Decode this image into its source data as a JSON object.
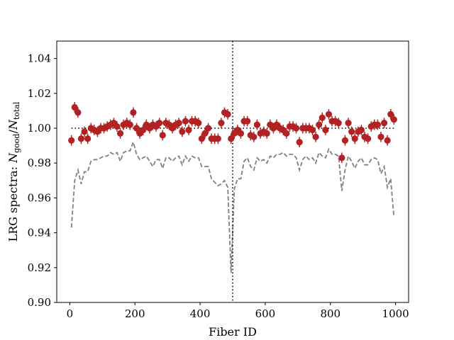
{
  "chart_data": {
    "type": "scatter",
    "xlabel": "Fiber ID",
    "ylabel": "LRG spectra: N_good/N_total",
    "ylabel_parts": {
      "prefix": "LRG spectra:  ",
      "num": "N",
      "num_sub": "good",
      "slash": "/",
      "den": "N",
      "den_sub": "total"
    },
    "xlim": [
      -40,
      1040
    ],
    "ylim": [
      0.9,
      1.05
    ],
    "x_ticks": [
      0,
      200,
      400,
      600,
      800,
      1000
    ],
    "x_tick_labels": [
      "0",
      "200",
      "400",
      "600",
      "800",
      "1000"
    ],
    "y_ticks": [
      0.9,
      0.92,
      0.94,
      0.96,
      0.98,
      1.0,
      1.02,
      1.04
    ],
    "y_tick_labels": [
      "0.90",
      "0.92",
      "0.94",
      "0.96",
      "0.98",
      "1.00",
      "1.02",
      "1.04"
    ],
    "grid": false,
    "colors": {
      "points": "#b22222",
      "dashed": "#808080",
      "reference": "#000000"
    },
    "vertical_line_x": 500,
    "reference_segments": [
      {
        "x": [
          5,
          500
        ],
        "y": 1.0
      },
      {
        "x": [
          500,
          995
        ],
        "y": 1.0
      }
    ],
    "series": [
      {
        "style": "points-with-errorbars",
        "x": [
          5,
          15,
          25,
          35,
          45,
          55,
          65,
          75,
          85,
          95,
          105,
          115,
          125,
          135,
          145,
          155,
          165,
          175,
          185,
          195,
          205,
          215,
          225,
          235,
          245,
          255,
          265,
          275,
          285,
          295,
          305,
          315,
          325,
          335,
          345,
          355,
          365,
          375,
          385,
          395,
          405,
          415,
          425,
          435,
          445,
          455,
          465,
          475,
          485,
          495,
          505,
          515,
          525,
          535,
          545,
          555,
          565,
          575,
          585,
          595,
          605,
          615,
          625,
          635,
          645,
          655,
          665,
          675,
          685,
          695,
          705,
          715,
          725,
          735,
          745,
          755,
          765,
          775,
          785,
          795,
          805,
          815,
          825,
          835,
          845,
          855,
          865,
          875,
          885,
          895,
          905,
          915,
          925,
          935,
          945,
          955,
          965,
          975,
          985,
          995
        ],
        "y": [
          0.993,
          1.012,
          1.009,
          0.994,
          0.998,
          0.994,
          1.0,
          0.999,
          0.998,
          1.0,
          1.0,
          1.001,
          1.002,
          1.003,
          1.001,
          0.997,
          1.002,
          1.003,
          1.002,
          1.009,
          1.0,
          0.997,
          0.999,
          1.002,
          1.0,
          1.002,
          1.001,
          1.003,
          0.996,
          1.003,
          1.002,
          1.0,
          1.002,
          1.003,
          0.998,
          1.004,
          0.999,
          1.004,
          1.004,
          1.003,
          0.994,
          0.997,
          1.0,
          0.994,
          0.994,
          0.994,
          1.003,
          1.009,
          1.008,
          0.994,
          0.997,
          0.999,
          0.997,
          1.004,
          1.004,
          0.996,
          0.995,
          1.002,
          0.997,
          0.998,
          0.997,
          1.002,
          1.0,
          1.002,
          1.0,
          0.999,
          0.997,
          1.001,
          1.001,
          1.0,
          0.992,
          1.0,
          1.0,
          1.0,
          0.999,
          0.995,
          1.002,
          1.006,
          0.999,
          1.008,
          1.004,
          1.004,
          1.003,
          0.983,
          0.993,
          1.003,
          0.998,
          0.994,
          0.998,
          0.999,
          0.995,
          0.994,
          1.001,
          1.002,
          1.002,
          0.995,
          1.003,
          0.993,
          1.008,
          1.005
        ],
        "yerr": 0.003
      },
      {
        "style": "dashed-line",
        "x": [
          5,
          15,
          25,
          35,
          45,
          55,
          65,
          75,
          85,
          95,
          105,
          115,
          125,
          135,
          145,
          155,
          165,
          175,
          185,
          195,
          205,
          215,
          225,
          235,
          245,
          255,
          265,
          275,
          285,
          295,
          305,
          315,
          325,
          335,
          345,
          355,
          365,
          375,
          385,
          395,
          405,
          415,
          425,
          435,
          445,
          455,
          465,
          475,
          485,
          495,
          505,
          515,
          525,
          535,
          545,
          555,
          565,
          575,
          585,
          595,
          605,
          615,
          625,
          635,
          645,
          655,
          665,
          675,
          685,
          695,
          705,
          715,
          725,
          735,
          745,
          755,
          765,
          775,
          785,
          795,
          805,
          815,
          825,
          835,
          845,
          855,
          865,
          875,
          885,
          895,
          905,
          915,
          925,
          935,
          945,
          955,
          965,
          975,
          985,
          995
        ],
        "y": [
          0.943,
          0.97,
          0.976,
          0.968,
          0.975,
          0.975,
          0.981,
          0.982,
          0.982,
          0.983,
          0.984,
          0.984,
          0.986,
          0.985,
          0.986,
          0.981,
          0.986,
          0.987,
          0.987,
          0.992,
          0.985,
          0.982,
          0.983,
          0.984,
          0.981,
          0.978,
          0.982,
          0.982,
          0.977,
          0.983,
          0.983,
          0.981,
          0.983,
          0.984,
          0.979,
          0.984,
          0.981,
          0.984,
          0.983,
          0.983,
          0.978,
          0.978,
          0.978,
          0.971,
          0.969,
          0.967,
          0.968,
          0.97,
          0.966,
          0.917,
          0.965,
          0.971,
          0.971,
          0.981,
          0.983,
          0.978,
          0.976,
          0.983,
          0.981,
          0.982,
          0.98,
          0.984,
          0.983,
          0.985,
          0.985,
          0.986,
          0.984,
          0.985,
          0.985,
          0.983,
          0.976,
          0.982,
          0.984,
          0.982,
          0.983,
          0.98,
          0.986,
          0.984,
          0.983,
          0.988,
          0.985,
          0.985,
          0.984,
          0.964,
          0.976,
          0.984,
          0.981,
          0.977,
          0.981,
          0.983,
          0.979,
          0.979,
          0.982,
          0.983,
          0.982,
          0.974,
          0.978,
          0.966,
          0.971,
          0.949
        ]
      }
    ]
  }
}
